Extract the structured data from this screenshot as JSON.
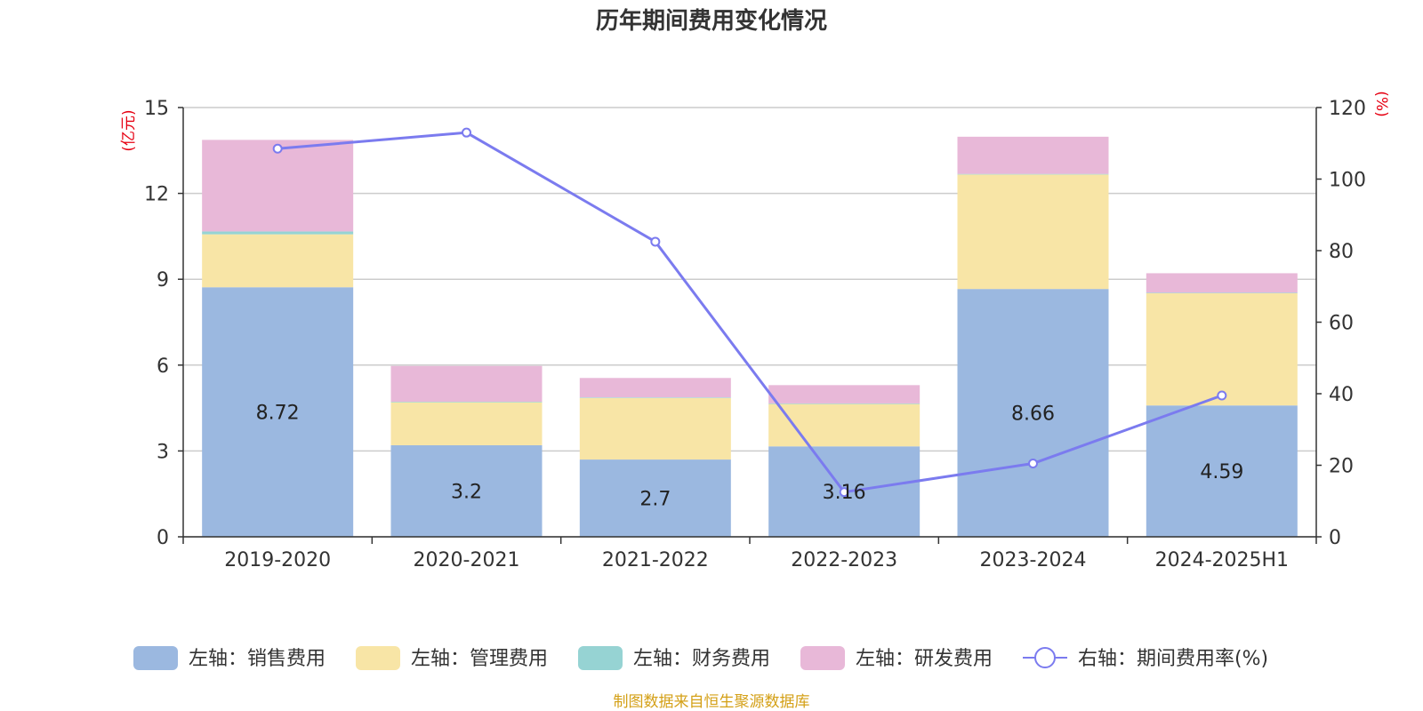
{
  "chart_data": {
    "type": "bar",
    "title": "历年期间费用变化情况",
    "categories": [
      "2019-2020",
      "2020-2021",
      "2021-2022",
      "2022-2023",
      "2023-2024",
      "2024-2025H1"
    ],
    "left_axis": {
      "unit": "(亿元)",
      "ylim": [
        0,
        15
      ],
      "ticks": [
        "0",
        "3",
        "6",
        "9",
        "12",
        "15"
      ]
    },
    "right_axis": {
      "unit": "(%)",
      "ylim": [
        0,
        120
      ],
      "ticks": [
        "0",
        "20",
        "40",
        "60",
        "80",
        "100",
        "120"
      ]
    },
    "series": [
      {
        "name": "左轴：销售费用",
        "color": "#9bb8e0",
        "stack": true,
        "axis": "left",
        "values": [
          8.72,
          3.2,
          2.7,
          3.16,
          8.66,
          4.59
        ],
        "labels": [
          "8.72",
          "3.2",
          "2.7",
          "3.16",
          "8.66",
          "4.59"
        ]
      },
      {
        "name": "左轴：管理费用",
        "color": "#f8e5a6",
        "stack": true,
        "axis": "left",
        "values": [
          1.85,
          1.5,
          2.15,
          1.48,
          4.0,
          3.92
        ]
      },
      {
        "name": "左轴：财务费用",
        "color": "#96d3d3",
        "stack": true,
        "axis": "left",
        "values": [
          0.1,
          0.02,
          0.02,
          0.02,
          0.02,
          0.02
        ]
      },
      {
        "name": "左轴：研发费用",
        "color": "#e8b8d8",
        "stack": true,
        "axis": "left",
        "values": [
          3.2,
          1.25,
          0.68,
          0.64,
          1.3,
          0.68
        ]
      },
      {
        "name": "右轴：期间费用率(%)",
        "color": "#7b7bef",
        "type": "line",
        "axis": "right",
        "values": [
          108.5,
          113.0,
          82.5,
          12.5,
          20.5,
          39.5
        ]
      }
    ]
  },
  "footer": {
    "source": "制图数据来自恒生聚源数据库"
  }
}
